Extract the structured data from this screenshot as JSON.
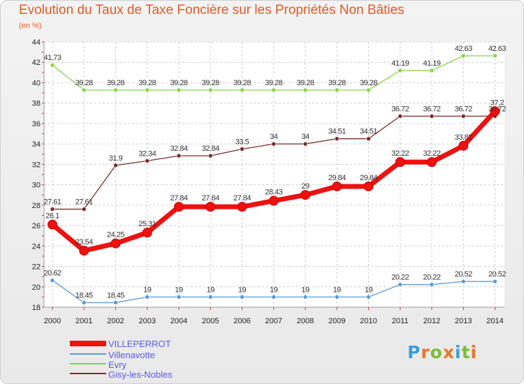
{
  "header": {
    "title": "Evolution du Taux de Taxe Foncière sur les Propriétés Non Bâties",
    "subtitle": "(en %)"
  },
  "brand": {
    "letters": [
      "P",
      "r",
      "o",
      "x",
      "i",
      "t",
      "i"
    ],
    "colors": [
      "#3aa0d8",
      "#e8762b",
      "#7dbb3a",
      "#e8762b",
      "#3aa0d8",
      "#7dbb3a",
      "#e8762b"
    ]
  },
  "colors": {
    "VILLEPERROT": "#ee1111",
    "Villenavotte": "#5b9bd5",
    "Evry": "#86d44a",
    "Gisy-les-Nobles": "#7b2b2b",
    "grid": "#cccccc",
    "axis_text": "#222222",
    "accent": "#e05a2a"
  },
  "chart_data": {
    "type": "line",
    "title": "Evolution du Taux de Taxe Foncière sur les Propriétés Non Bâties",
    "ylabel": "(en %)",
    "xlabel": "",
    "x": [
      "2000",
      "2001",
      "2002",
      "2003",
      "2004",
      "2005",
      "2006",
      "2007",
      "2008",
      "2009",
      "2010",
      "2011",
      "2012",
      "2013",
      "2014"
    ],
    "ylim": [
      18,
      44
    ],
    "yticks": [
      18,
      20,
      22,
      24,
      26,
      28,
      30,
      32,
      34,
      36,
      38,
      40,
      42,
      44
    ],
    "grid": true,
    "legend": "bottom-left",
    "series": [
      {
        "name": "VILLEPERROT",
        "values": [
          26.1,
          23.54,
          24.25,
          25.31,
          27.84,
          27.84,
          27.84,
          28.43,
          29,
          29.84,
          29.84,
          32.22,
          32.22,
          33.82,
          37.2
        ],
        "labels": [
          "26.1",
          "23.54",
          "24.25",
          "25.31",
          "27.84",
          "27.84",
          "27.84",
          "28.43",
          "29",
          "29.84",
          "29.84",
          "32.22",
          "32.22",
          "33.82",
          "37.2"
        ]
      },
      {
        "name": "Villenavotte",
        "values": [
          20.62,
          18.45,
          18.45,
          19,
          19,
          19,
          19,
          19,
          19,
          19,
          19,
          20.22,
          20.22,
          20.52,
          20.52
        ],
        "labels": [
          "20.62",
          "18.45",
          "18.45",
          "19",
          "19",
          "19",
          "19",
          "19",
          "19",
          "19",
          "19",
          "20.22",
          "20.22",
          "20.52",
          "20.52"
        ]
      },
      {
        "name": "Evry",
        "values": [
          41.73,
          39.28,
          39.28,
          39.28,
          39.28,
          39.28,
          39.28,
          39.28,
          39.28,
          39.28,
          39.28,
          41.19,
          41.19,
          42.63,
          42.63
        ],
        "labels": [
          "41.73",
          "39.28",
          "39.28",
          "39.28",
          "39.28",
          "39.28",
          "39.28",
          "39.28",
          "39.28",
          "39.28",
          "39.28",
          "41.19",
          "41.19",
          "42.63",
          "42.63"
        ]
      },
      {
        "name": "Gisy-les-Nobles",
        "values": [
          27.61,
          27.61,
          31.9,
          32.34,
          32.84,
          32.84,
          33.5,
          34,
          34,
          34.51,
          34.51,
          36.72,
          36.72,
          36.72,
          36.72
        ],
        "labels": [
          "27.61",
          "27.61",
          "31.9",
          "32.34",
          "32.84",
          "32.84",
          "33.5",
          "34",
          "34",
          "34.51",
          "34.51",
          "36.72",
          "36.72",
          "36.72",
          "36.72"
        ]
      }
    ]
  }
}
